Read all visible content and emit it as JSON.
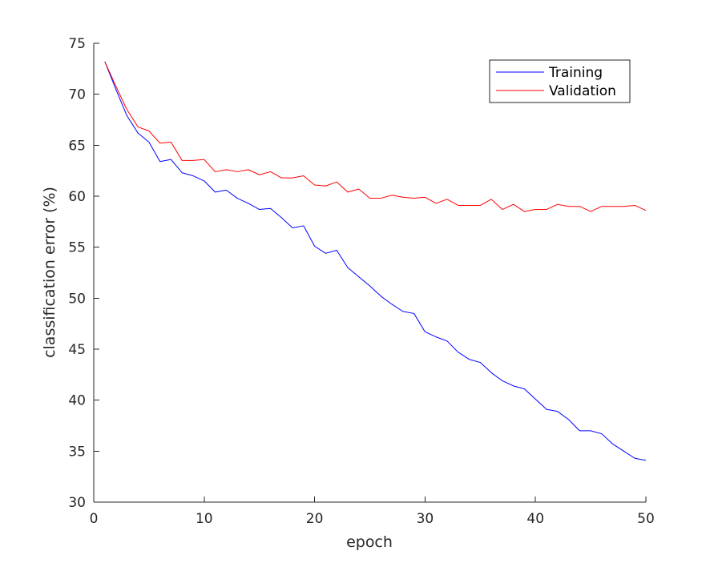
{
  "chart_data": {
    "type": "line",
    "xlabel": "epoch",
    "ylabel": "classification error (%)",
    "xlim": [
      0,
      50
    ],
    "ylim": [
      30,
      75
    ],
    "xticks": [
      "0",
      "10",
      "20",
      "30",
      "40",
      "50"
    ],
    "yticks": [
      "30",
      "35",
      "40",
      "45",
      "50",
      "55",
      "60",
      "65",
      "70",
      "75"
    ],
    "grid": false,
    "legend_position": "top-right",
    "x": [
      1,
      2,
      3,
      4,
      5,
      6,
      7,
      8,
      9,
      10,
      11,
      12,
      13,
      14,
      15,
      16,
      17,
      18,
      19,
      20,
      21,
      22,
      23,
      24,
      25,
      26,
      27,
      28,
      29,
      30,
      31,
      32,
      33,
      34,
      35,
      36,
      37,
      38,
      39,
      40,
      41,
      42,
      43,
      44,
      45,
      46,
      47,
      48,
      49,
      50
    ],
    "series": [
      {
        "name": "Training",
        "color": "#0000ff",
        "values": [
          73.2,
          70.5,
          67.9,
          66.2,
          65.3,
          63.4,
          63.6,
          62.3,
          62.0,
          61.5,
          60.4,
          60.6,
          59.8,
          59.3,
          58.7,
          58.8,
          57.9,
          56.9,
          57.1,
          55.1,
          54.4,
          54.7,
          53.0,
          52.1,
          51.2,
          50.2,
          49.4,
          48.7,
          48.5,
          46.7,
          46.2,
          45.8,
          44.7,
          44.0,
          43.7,
          42.7,
          41.9,
          41.4,
          41.1,
          40.1,
          39.1,
          38.9,
          38.1,
          37.0,
          37.0,
          36.7,
          35.7,
          35.0,
          34.3,
          34.1
        ]
      },
      {
        "name": "Validation",
        "color": "#ff0000",
        "values": [
          73.2,
          70.8,
          68.5,
          66.8,
          66.4,
          65.2,
          65.3,
          63.5,
          63.5,
          63.6,
          62.4,
          62.6,
          62.4,
          62.6,
          62.1,
          62.4,
          61.8,
          61.8,
          62.0,
          61.1,
          61.0,
          61.4,
          60.4,
          60.7,
          59.8,
          59.8,
          60.1,
          59.9,
          59.8,
          59.9,
          59.3,
          59.7,
          59.1,
          59.1,
          59.1,
          59.7,
          58.7,
          59.2,
          58.5,
          58.7,
          58.7,
          59.2,
          59.0,
          59.0,
          58.5,
          59.0,
          59.0,
          59.0,
          59.1,
          58.6
        ]
      }
    ]
  }
}
